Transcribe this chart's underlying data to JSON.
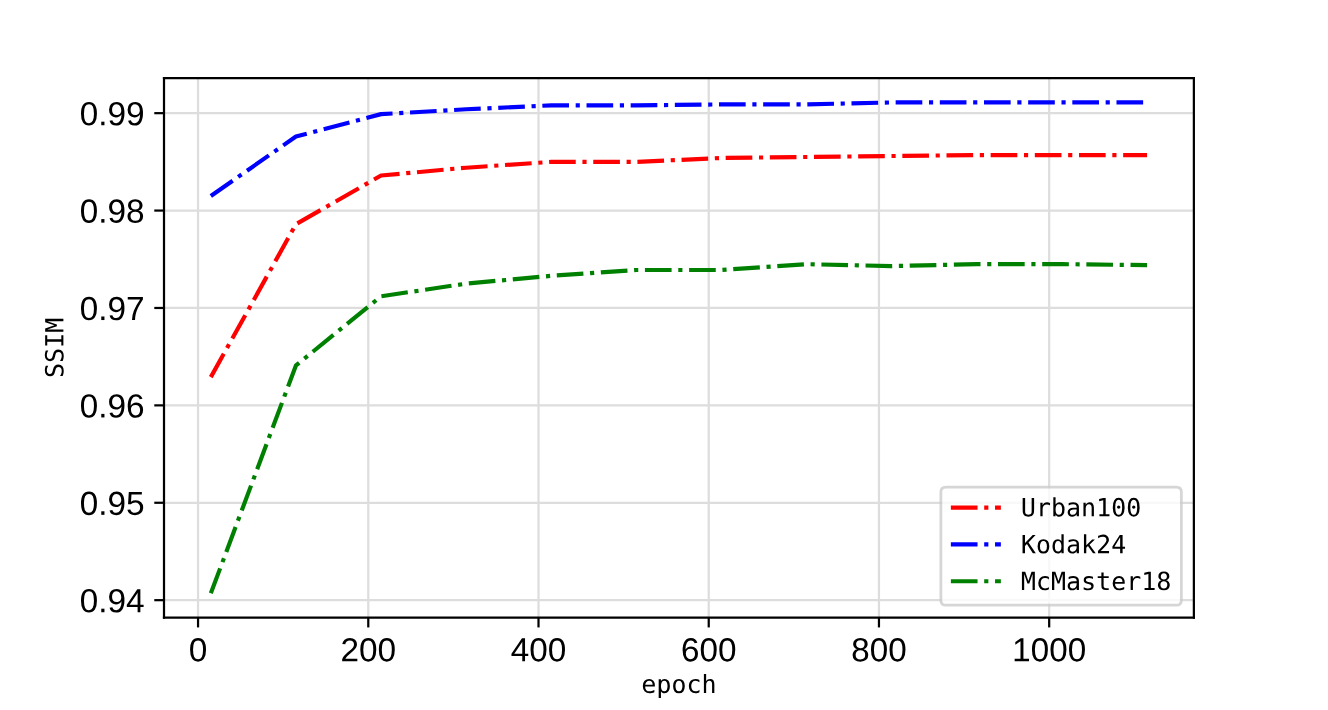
{
  "chart_data": {
    "type": "line",
    "xlabel": "epoch",
    "ylabel": "SSIM",
    "x": [
      15,
      115,
      215,
      315,
      415,
      515,
      615,
      715,
      815,
      915,
      1015,
      1115
    ],
    "series": [
      {
        "name": "Urban100",
        "color": "#ff0000",
        "values": [
          0.9629,
          0.9786,
          0.9836,
          0.9844,
          0.985,
          0.985,
          0.9854,
          0.9855,
          0.9856,
          0.9857,
          0.9857,
          0.9857
        ]
      },
      {
        "name": "Kodak24",
        "color": "#0000ff",
        "values": [
          0.9815,
          0.9876,
          0.9899,
          0.9904,
          0.9908,
          0.9908,
          0.9909,
          0.9909,
          0.9911,
          0.9911,
          0.9911,
          0.9911
        ]
      },
      {
        "name": "McMaster18",
        "color": "#008000",
        "values": [
          0.9407,
          0.9641,
          0.9712,
          0.9725,
          0.9733,
          0.9739,
          0.9739,
          0.9745,
          0.9743,
          0.9745,
          0.9745,
          0.9744
        ]
      }
    ],
    "xlim": [
      -40,
      1170
    ],
    "xticks": [
      0,
      200,
      400,
      600,
      800,
      1000
    ],
    "ylim": [
      0.9382,
      0.9936
    ],
    "yticks": [
      {
        "value": 0.94,
        "label": "0.94"
      },
      {
        "value": 0.95,
        "label": "0.95"
      },
      {
        "value": 0.96,
        "label": "0.96"
      },
      {
        "value": 0.97,
        "label": "0.97"
      },
      {
        "value": 0.98,
        "label": "0.98"
      },
      {
        "value": 0.99,
        "label": "0.99"
      }
    ],
    "grid": true,
    "legend": "bottom right",
    "line_style": "dashdot",
    "marker": "none"
  }
}
